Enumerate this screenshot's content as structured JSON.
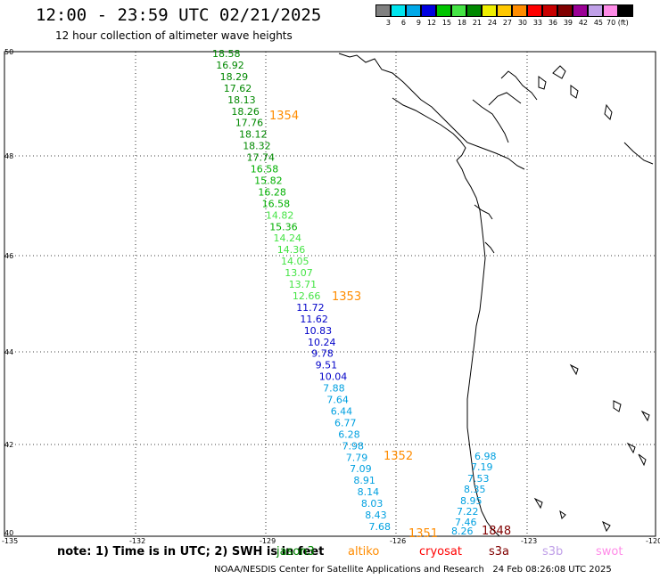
{
  "title": "12:00 - 23:59 UTC 02/21/2025",
  "subtitle": "12 hour collection of altimeter wave heights",
  "colorbar": {
    "labels": [
      "3",
      "6",
      "9",
      "12",
      "15",
      "18",
      "21",
      "24",
      "27",
      "30",
      "33",
      "36",
      "39",
      "42",
      "45",
      "70 (ft)"
    ],
    "colors": [
      "#808080",
      "#00e5ee",
      "#00a8e8",
      "#0000e0",
      "#00c400",
      "#44e444",
      "#008800",
      "#eeee00",
      "#ffc800",
      "#ff8c00",
      "#ff0000",
      "#c80000",
      "#800000",
      "#9a0095",
      "#c0a0e8",
      "#ff8ce8",
      "#000000"
    ]
  },
  "axes": {
    "lat_labels": [
      "50",
      "48",
      "46",
      "44",
      "42",
      "40"
    ],
    "lon_labels": [
      "-135",
      "-132",
      "-129",
      "-126",
      "-123",
      "-120"
    ]
  },
  "track1": [
    {
      "v": "18.58",
      "c": "#008800"
    },
    {
      "v": "16.92",
      "c": "#008800"
    },
    {
      "v": "18.29",
      "c": "#008800"
    },
    {
      "v": "17.62",
      "c": "#008800"
    },
    {
      "v": "18.13",
      "c": "#008800"
    },
    {
      "v": "18.26",
      "c": "#008800"
    },
    {
      "v": "17.76",
      "c": "#008800"
    },
    {
      "v": "18.12",
      "c": "#008800"
    },
    {
      "v": "18.32",
      "c": "#008800"
    },
    {
      "v": "17.74",
      "c": "#008800"
    },
    {
      "v": "16.58",
      "c": "#00b000"
    },
    {
      "v": "15.82",
      "c": "#00b000"
    },
    {
      "v": "16.28",
      "c": "#00b000"
    },
    {
      "v": "16.58",
      "c": "#00b000"
    },
    {
      "v": "14.82",
      "c": "#44e444"
    },
    {
      "v": "15.36",
      "c": "#00b000"
    },
    {
      "v": "14.24",
      "c": "#44e444"
    },
    {
      "v": "14.36",
      "c": "#44e444"
    },
    {
      "v": "14.05",
      "c": "#44e444"
    },
    {
      "v": "13.07",
      "c": "#44e444"
    },
    {
      "v": "13.71",
      "c": "#44e444"
    },
    {
      "v": "12.66",
      "c": "#44e444"
    },
    {
      "v": "11.72",
      "c": "#0000c8"
    },
    {
      "v": "11.62",
      "c": "#0000c8"
    },
    {
      "v": "10.83",
      "c": "#0000c8"
    },
    {
      "v": "10.24",
      "c": "#0000c8"
    },
    {
      "v": "9.78",
      "c": "#0000c8"
    },
    {
      "v": "9.51",
      "c": "#0000c8"
    },
    {
      "v": "10.04",
      "c": "#0000c8"
    },
    {
      "v": "7.88",
      "c": "#00a0e0"
    },
    {
      "v": "7.64",
      "c": "#00a0e0"
    },
    {
      "v": "6.44",
      "c": "#00a0e0"
    },
    {
      "v": "6.77",
      "c": "#00a0e0"
    },
    {
      "v": "6.28",
      "c": "#00a0e0"
    },
    {
      "v": "7.98",
      "c": "#00a0e0"
    },
    {
      "v": "7.79",
      "c": "#00a0e0"
    },
    {
      "v": "7.09",
      "c": "#00a0e0"
    },
    {
      "v": "8.91",
      "c": "#00a0e0"
    },
    {
      "v": "8.14",
      "c": "#00a0e0"
    },
    {
      "v": "8.03",
      "c": "#00a0e0"
    },
    {
      "v": "8.43",
      "c": "#00a0e0"
    },
    {
      "v": "7.68",
      "c": "#00a0e0"
    }
  ],
  "track2": [
    {
      "v": "6.98",
      "c": "#00a0e0"
    },
    {
      "v": "7.19",
      "c": "#00a0e0"
    },
    {
      "v": "7.53",
      "c": "#00a0e0"
    },
    {
      "v": "8.35",
      "c": "#00a0e0"
    },
    {
      "v": "8.95",
      "c": "#00a0e0"
    },
    {
      "v": "7.22",
      "c": "#00a0e0"
    },
    {
      "v": "7.46",
      "c": "#00a0e0"
    },
    {
      "v": "8.26",
      "c": "#00a0e0"
    }
  ],
  "pass_labels": [
    {
      "v": "1354",
      "c": "#ff8c00"
    },
    {
      "v": "1353",
      "c": "#ff8c00"
    },
    {
      "v": "1352",
      "c": "#ff8c00"
    },
    {
      "v": "1351",
      "c": "#ff8c00"
    },
    {
      "v": "1848",
      "c": "#800000"
    }
  ],
  "note": "note: 1) Time is in UTC; 2) SWH is in feet",
  "legend": [
    {
      "v": "jason3",
      "c": "#008800"
    },
    {
      "v": "altiko",
      "c": "#ff8c00"
    },
    {
      "v": "cryosat",
      "c": "#ff0000"
    },
    {
      "v": "s3a",
      "c": "#800000"
    },
    {
      "v": "s3b",
      "c": "#c0a0e8"
    },
    {
      "v": "swot",
      "c": "#ff8ce8"
    }
  ],
  "footer": "NOAA/NESDIS Center for Satellite Applications and Research   24 Feb 08:26:08 UTC 2025"
}
